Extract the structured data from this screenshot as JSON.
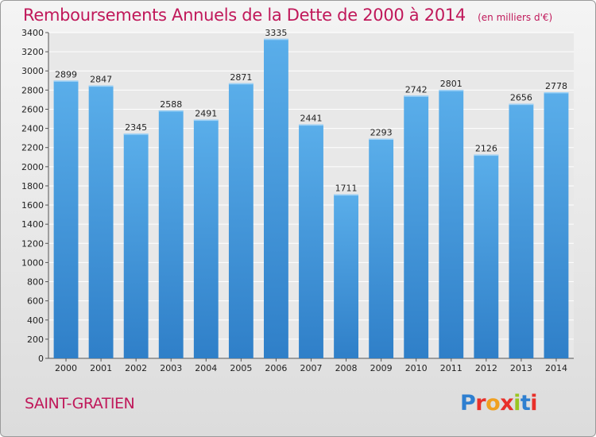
{
  "chart_data": {
    "type": "bar",
    "title": "Remboursements Annuels de la Dette de 2000 à 2014",
    "unit_note": "(en milliers d'€)",
    "categories": [
      "2000",
      "2001",
      "2002",
      "2003",
      "2004",
      "2005",
      "2006",
      "2007",
      "2008",
      "2009",
      "2010",
      "2011",
      "2012",
      "2013",
      "2014"
    ],
    "values": [
      2899,
      2847,
      2345,
      2588,
      2491,
      2871,
      3335,
      2441,
      1711,
      2293,
      2742,
      2801,
      2126,
      2656,
      2778
    ],
    "ylim": [
      0,
      3400
    ],
    "ytick_step": 200,
    "grid": true,
    "bar_color": "#4a9de0"
  },
  "footer": {
    "commune": "SAINT-GRATIEN",
    "logo_text": "Proxiti",
    "logo_colors": [
      "#2e7fd0",
      "#e8302a",
      "#f0a020",
      "#e8302a",
      "#9ac422",
      "#2e7fd0",
      "#e8302a"
    ]
  }
}
